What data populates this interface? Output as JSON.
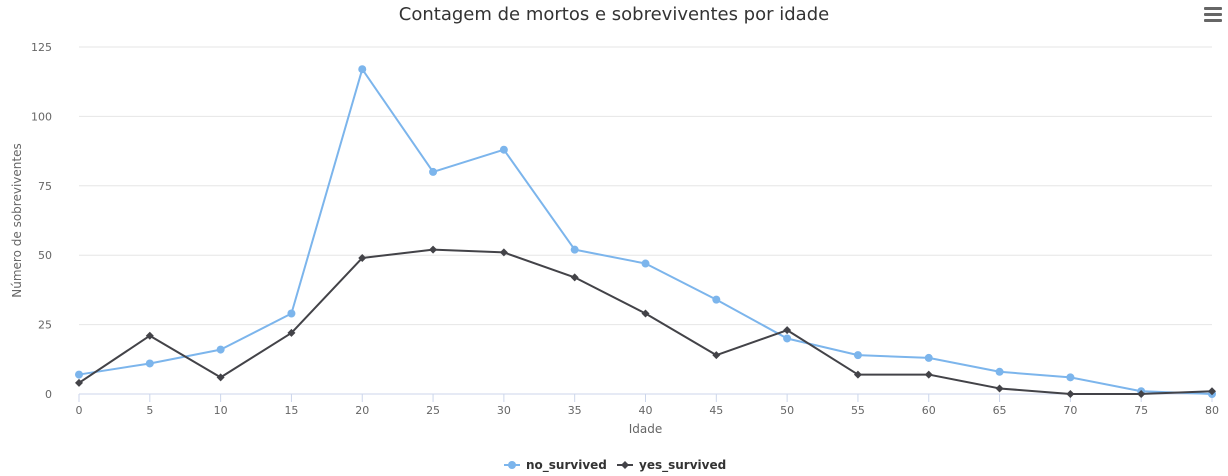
{
  "chart_data": {
    "type": "line",
    "title": "Contagem de mortos e sobreviventes por idade",
    "xlabel": "Idade",
    "ylabel": "Número de sobreviventes",
    "x": [
      0,
      5,
      10,
      15,
      20,
      25,
      30,
      35,
      40,
      45,
      50,
      55,
      60,
      65,
      70,
      75,
      80
    ],
    "xlim": [
      0,
      80
    ],
    "ylim": [
      0,
      125
    ],
    "yticks": [
      0,
      25,
      50,
      75,
      100,
      125
    ],
    "grid": true,
    "legend_position": "bottom-center",
    "series": [
      {
        "name": "no_survived",
        "color": "#7cb5ec",
        "marker": "circle",
        "values": [
          7,
          11,
          16,
          29,
          117,
          80,
          88,
          52,
          47,
          34,
          20,
          14,
          13,
          8,
          6,
          1,
          0
        ]
      },
      {
        "name": "yes_survived",
        "color": "#434348",
        "marker": "diamond",
        "values": [
          4,
          21,
          6,
          22,
          49,
          52,
          51,
          42,
          29,
          14,
          23,
          7,
          7,
          2,
          0,
          0,
          1
        ]
      }
    ]
  },
  "toolbar": {
    "menu_icon": "hamburger-menu-icon"
  }
}
